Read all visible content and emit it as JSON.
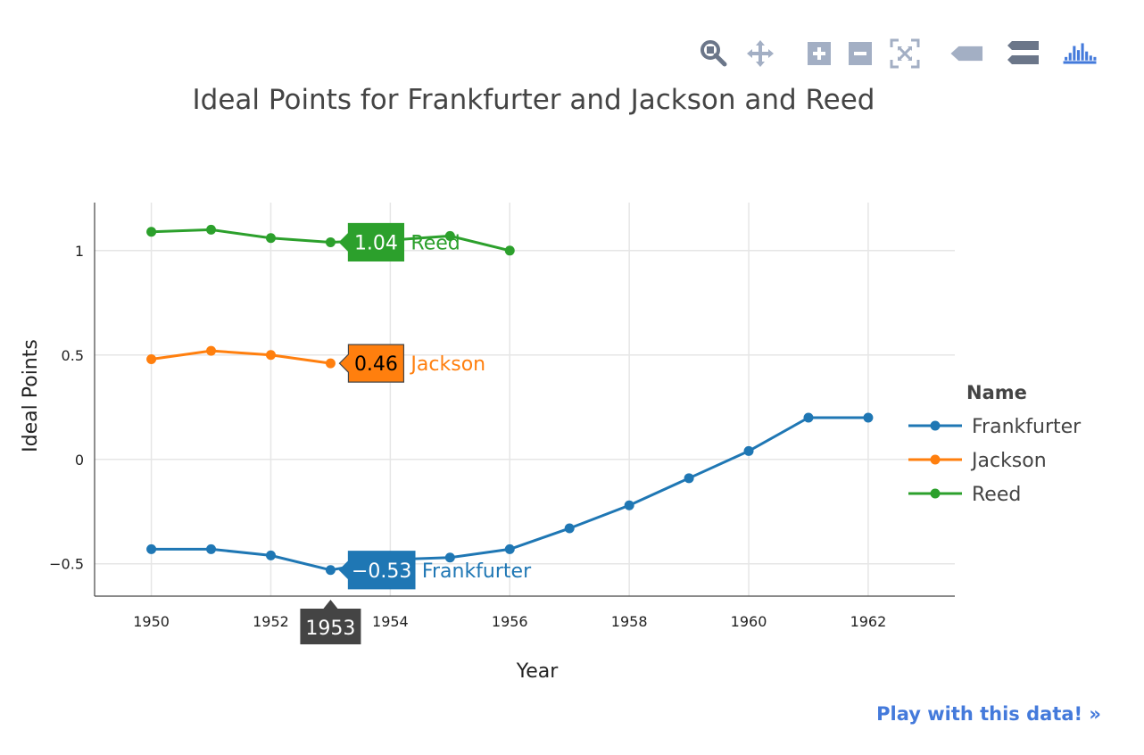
{
  "modebar": {
    "buttons": [
      {
        "name": "zoom-icon",
        "color": "#6b7689"
      },
      {
        "name": "pan-icon",
        "color": "#a3afc4"
      },
      {
        "name": "zoom-in-icon",
        "color": "#a3afc4"
      },
      {
        "name": "zoom-out-icon",
        "color": "#a3afc4"
      },
      {
        "name": "autoscale-icon",
        "color": "#a3afc4"
      },
      {
        "name": "hover-closest-icon",
        "color": "#a3afc4"
      },
      {
        "name": "hover-compare-icon",
        "color": "#6b7689"
      },
      {
        "name": "plotly-logo-icon",
        "color": "#447adb"
      }
    ]
  },
  "footer": {
    "link_label": "Play with this data! »"
  },
  "chart_data": {
    "type": "line",
    "title": "Ideal Points for Frankfurter and Jackson and Reed",
    "xlabel": "Year",
    "ylabel": "Ideal Points",
    "xlim": [
      1949.05,
      1963.45
    ],
    "ylim": [
      -0.655,
      1.23
    ],
    "x_ticks": [
      1950,
      1952,
      1954,
      1956,
      1958,
      1960,
      1962
    ],
    "x_tick_labels": [
      "1950",
      "1952",
      "1954",
      "1956",
      "1958",
      "1960",
      "1962"
    ],
    "y_ticks": [
      -0.5,
      0,
      0.5,
      1
    ],
    "y_tick_labels": [
      "−0.5",
      "0",
      "0.5",
      "1"
    ],
    "grid": true,
    "legend": {
      "title": "Name",
      "position": "right"
    },
    "series": [
      {
        "name": "Frankfurter",
        "color": "#1f77b4",
        "x": [
          1950,
          1951,
          1952,
          1953,
          1954,
          1955,
          1956,
          1957,
          1958,
          1959,
          1960,
          1961,
          1962
        ],
        "y": [
          -0.43,
          -0.43,
          -0.46,
          -0.53,
          -0.48,
          -0.47,
          -0.43,
          -0.33,
          -0.22,
          -0.09,
          0.04,
          0.2,
          0.2
        ]
      },
      {
        "name": "Jackson",
        "color": "#ff7f0e",
        "x": [
          1950,
          1951,
          1952,
          1953
        ],
        "y": [
          0.48,
          0.52,
          0.5,
          0.46
        ]
      },
      {
        "name": "Reed",
        "color": "#2ca02c",
        "x": [
          1950,
          1951,
          1952,
          1953,
          1954,
          1955,
          1956
        ],
        "y": [
          1.09,
          1.1,
          1.06,
          1.04,
          1.05,
          1.07,
          1.0
        ]
      }
    ],
    "hover": {
      "x_label": "1953",
      "labels": [
        {
          "series": 2,
          "value": "1.04",
          "name": "Reed"
        },
        {
          "series": 1,
          "value": "0.46",
          "name": "Jackson"
        },
        {
          "series": 0,
          "value": "−0.53",
          "name": "Frankfurter"
        }
      ]
    }
  }
}
